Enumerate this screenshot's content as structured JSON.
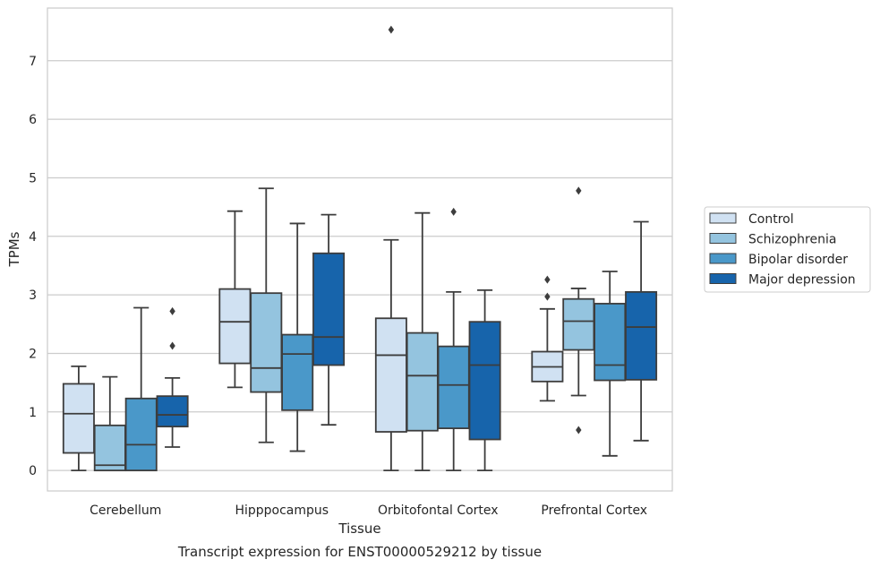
{
  "chart_data": {
    "type": "boxplot",
    "caption": "Transcript expression for ENST00000529212 by tissue",
    "xlabel": "Tissue",
    "ylabel": "TPMs",
    "ylim": [
      -0.35,
      7.9
    ],
    "yticks": [
      0,
      1,
      2,
      3,
      4,
      5,
      6,
      7
    ],
    "grid": true,
    "legend_position": "right",
    "categories": [
      "Cerebellum",
      "Hipppocampus",
      "Orbitofontal Cortex",
      "Prefrontal Cortex"
    ],
    "series": [
      {
        "name": "Control",
        "color": "#d0e1f2",
        "boxes": [
          {
            "min": 0.0,
            "q1": 0.3,
            "median": 0.97,
            "q3": 1.48,
            "max": 1.78,
            "outliers": []
          },
          {
            "min": 1.42,
            "q1": 1.83,
            "median": 2.54,
            "q3": 3.1,
            "max": 4.43,
            "outliers": []
          },
          {
            "min": 0.0,
            "q1": 0.66,
            "median": 1.97,
            "q3": 2.6,
            "max": 3.94,
            "outliers": [
              7.53
            ]
          },
          {
            "min": 1.19,
            "q1": 1.52,
            "median": 1.77,
            "q3": 2.03,
            "max": 2.76,
            "outliers": [
              2.97,
              3.26
            ]
          }
        ]
      },
      {
        "name": "Schizophrenia",
        "color": "#94c4df",
        "boxes": [
          {
            "min": 0.0,
            "q1": 0.0,
            "median": 0.09,
            "q3": 0.77,
            "max": 1.6,
            "outliers": []
          },
          {
            "min": 0.48,
            "q1": 1.34,
            "median": 1.75,
            "q3": 3.03,
            "max": 4.82,
            "outliers": []
          },
          {
            "min": 0.0,
            "q1": 0.68,
            "median": 1.62,
            "q3": 2.35,
            "max": 4.4,
            "outliers": []
          },
          {
            "min": 1.28,
            "q1": 2.06,
            "median": 2.55,
            "q3": 2.93,
            "max": 3.11,
            "outliers": [
              0.69,
              4.78
            ]
          }
        ]
      },
      {
        "name": "Bipolar disorder",
        "color": "#4a98c9",
        "boxes": [
          {
            "min": 0.0,
            "q1": 0.0,
            "median": 0.44,
            "q3": 1.23,
            "max": 2.78,
            "outliers": []
          },
          {
            "min": 0.33,
            "q1": 1.03,
            "median": 1.99,
            "q3": 2.32,
            "max": 4.22,
            "outliers": []
          },
          {
            "min": 0.0,
            "q1": 0.72,
            "median": 1.46,
            "q3": 2.12,
            "max": 3.05,
            "outliers": [
              4.42
            ]
          },
          {
            "min": 0.25,
            "q1": 1.54,
            "median": 1.8,
            "q3": 2.85,
            "max": 3.4,
            "outliers": []
          }
        ]
      },
      {
        "name": "Major depression",
        "color": "#1764ab",
        "boxes": [
          {
            "min": 0.4,
            "q1": 0.75,
            "median": 0.95,
            "q3": 1.27,
            "max": 1.58,
            "outliers": [
              2.13,
              2.72
            ]
          },
          {
            "min": 0.78,
            "q1": 1.8,
            "median": 2.28,
            "q3": 3.71,
            "max": 4.37,
            "outliers": []
          },
          {
            "min": 0.0,
            "q1": 0.53,
            "median": 1.8,
            "q3": 2.54,
            "max": 3.08,
            "outliers": []
          },
          {
            "min": 0.51,
            "q1": 1.55,
            "median": 2.45,
            "q3": 3.05,
            "max": 4.25,
            "outliers": []
          }
        ]
      }
    ]
  }
}
